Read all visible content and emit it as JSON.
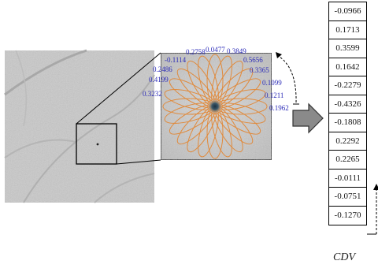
{
  "figure": {
    "radial_values": [
      "0.0477",
      "0.3849",
      "0.5656",
      "0.3365",
      "0.1099",
      "0.1211",
      "0.1962",
      "0.3232",
      "0.4199",
      "0.2486",
      "-0.1114",
      "0.2758"
    ],
    "cdv_values": [
      "-0.0966",
      "0.1713",
      "0.3599",
      "0.1642",
      "-0.2279",
      "-0.4326",
      "-0.1808",
      "0.2292",
      "0.2265",
      "-0.0111",
      "-0.0751",
      "-0.1270"
    ],
    "cdv_label": "CDV",
    "colors": {
      "petals": "#e08a3c",
      "value_text": "#2b2bb8",
      "arrow": "#8a8a8a",
      "outline": "#000000"
    }
  }
}
